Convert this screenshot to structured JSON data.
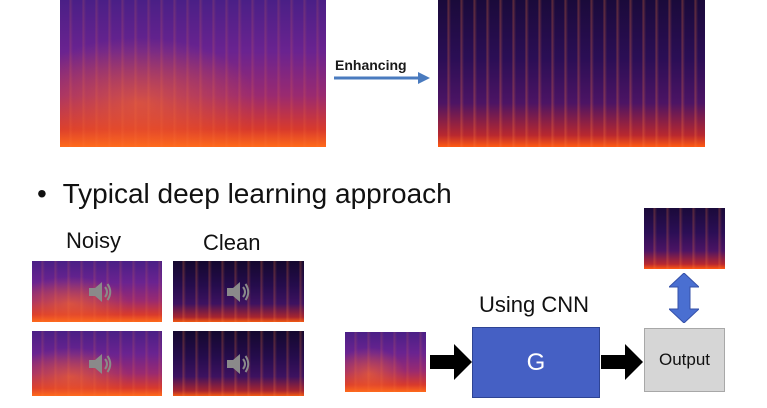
{
  "top": {
    "arrow_label": "Enhancing"
  },
  "bullet": {
    "symbol": "•",
    "text": "Typical deep learning approach"
  },
  "labels": {
    "noisy": "Noisy",
    "clean": "Clean"
  },
  "model": {
    "caption": "Using CNN",
    "block_label": "G",
    "block_color": "#4560c4"
  },
  "output": {
    "label": "Output",
    "box_color": "#d6d6d6"
  },
  "colors": {
    "arrow_blue": "#4a7bbf",
    "double_arrow": "#4a6fd1"
  },
  "icons": [
    "speaker-icon",
    "arrow-right-icon",
    "double-arrow-icon"
  ]
}
